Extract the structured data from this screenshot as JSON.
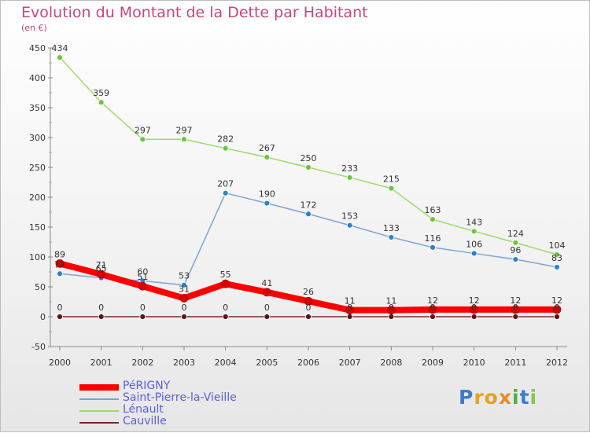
{
  "title": "Evolution du Montant de la Dette par Habitant",
  "subtitle": "(en €)",
  "logo": [
    "P",
    "r",
    "o",
    "x",
    "i",
    "t",
    "i"
  ],
  "logo_colors": [
    "#3d7bd1",
    "#e6a11c",
    "#e6a11c",
    "#f08a1c",
    "#4caf3a",
    "#3d7bd1",
    "#8bc34a"
  ],
  "chart_data": {
    "type": "line",
    "title": "Evolution du Montant de la Dette par Habitant",
    "ylabel": "(en €)",
    "xlabel": "",
    "x": [
      "2000",
      "2001",
      "2002",
      "2003",
      "2004",
      "2005",
      "2006",
      "2007",
      "2008",
      "2009",
      "2010",
      "2011",
      "2012"
    ],
    "ylim": [
      -50,
      450
    ],
    "yticks": [
      -50,
      0,
      50,
      100,
      150,
      200,
      250,
      300,
      350,
      400,
      450
    ],
    "grid": false,
    "legend_position": "bottom-left",
    "series": [
      {
        "name": "PéRIGNY",
        "color": "#ff0000",
        "marker": "#d80000",
        "width": 8,
        "values": [
          89,
          71,
          51,
          31,
          55,
          41,
          26,
          11,
          11,
          12,
          12,
          12,
          12
        ]
      },
      {
        "name": "Saint-Pierre-la-Vieille",
        "color": "#7aa5d2",
        "marker": "#2f7fcf",
        "width": 1.5,
        "values": [
          72,
          65,
          60,
          53,
          207,
          190,
          172,
          153,
          133,
          116,
          106,
          96,
          83
        ]
      },
      {
        "name": "Lénault",
        "color": "#9cdb6a",
        "marker": "#6cc63a",
        "width": 1.5,
        "values": [
          434,
          359,
          297,
          297,
          282,
          267,
          250,
          233,
          215,
          163,
          143,
          124,
          104
        ]
      },
      {
        "name": "Cauville",
        "color": "#7a2a2a",
        "marker": "#5a1616",
        "width": 1.5,
        "values": [
          0,
          0,
          0,
          0,
          0,
          0,
          0,
          0,
          0,
          0,
          0,
          0,
          0
        ]
      }
    ]
  }
}
